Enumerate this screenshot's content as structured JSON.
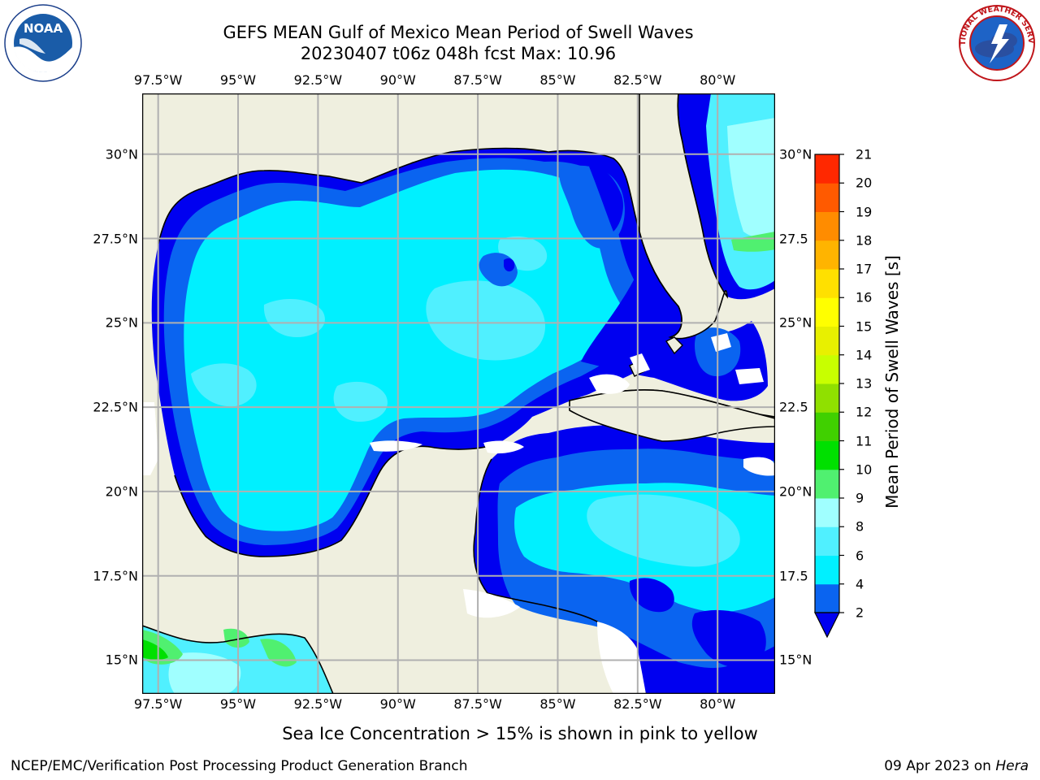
{
  "header": {
    "title_line1": "GEFS MEAN Gulf of Mexico Mean Period of Swell Waves",
    "title_line2": "20230407 t06z 048h fcst   Max: 10.96"
  },
  "map": {
    "lon_ticks": [
      "97.5°W",
      "95°W",
      "92.5°W",
      "90°W",
      "87.5°W",
      "85°W",
      "82.5°W",
      "80°W"
    ],
    "lon_values": [
      -97.5,
      -95,
      -92.5,
      -90,
      -87.5,
      -85,
      -82.5,
      -80
    ],
    "lat_ticks_left": [
      "30°N",
      "27.5°N",
      "25°N",
      "22.5°N",
      "20°N",
      "17.5°N",
      "15°N"
    ],
    "lat_ticks_right": [
      "30°N",
      "27.5",
      "25°N",
      "22.5",
      "20°N",
      "17.5",
      "15°N"
    ],
    "lat_values": [
      30,
      27.5,
      25,
      22.5,
      20,
      17.5,
      15
    ],
    "extent": {
      "lon": [
        -98,
        -78.2
      ],
      "lat": [
        14,
        31.8
      ]
    },
    "land_color": "#efefdf",
    "grid_color": "#b0b0b0"
  },
  "colorbar": {
    "title": "Mean Period of Swell Waves [s]",
    "levels": [
      "2",
      "4",
      "6",
      "8",
      "9",
      "10",
      "11",
      "12",
      "13",
      "14",
      "15",
      "16",
      "17",
      "18",
      "19",
      "20",
      "21"
    ],
    "level_values": [
      2,
      4,
      6,
      8,
      9,
      10,
      11,
      12,
      13,
      14,
      15,
      16,
      17,
      18,
      19,
      20,
      21
    ],
    "colors": [
      "#0a64f0",
      "#00f0ff",
      "#50f0ff",
      "#a0ffff",
      "#50f070",
      "#00e000",
      "#40d000",
      "#90e000",
      "#c8ff00",
      "#e8f000",
      "#ffff00",
      "#ffe000",
      "#ffb400",
      "#ff8c00",
      "#ff5a00",
      "#ff2800"
    ],
    "under_color": "#0000f0"
  },
  "logos": {
    "left": "NOAA",
    "right_text": "NATIONAL WEATHER SERVICE"
  },
  "footer": {
    "note": "Sea Ice Concentration > 15% is shown in pink to yellow",
    "left": "NCEP/EMC/Verification Post Processing Product Generation Branch",
    "right_date": "09 Apr 2023 on ",
    "right_host": "Hera"
  }
}
